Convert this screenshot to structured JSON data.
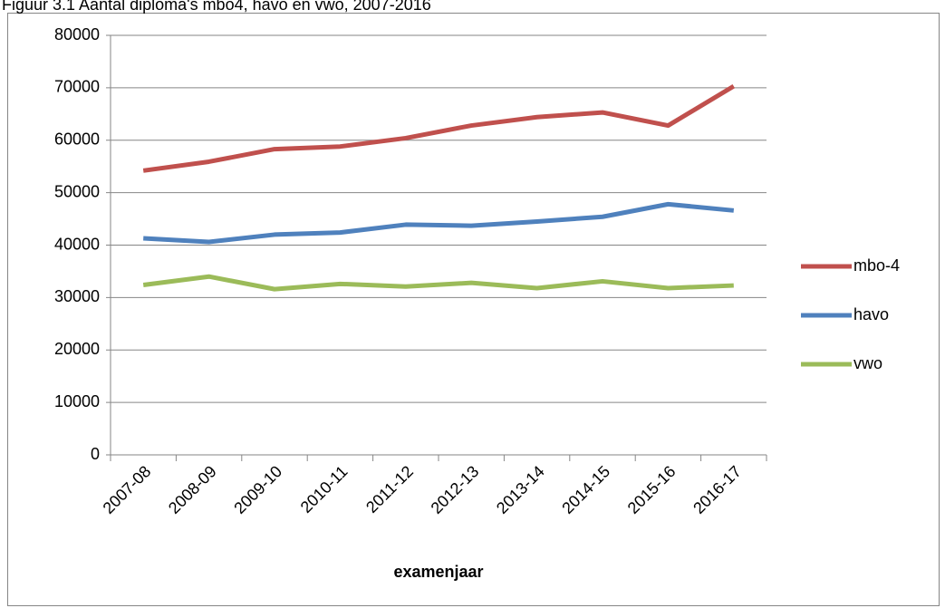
{
  "chart_data": {
    "type": "line",
    "title": "Figuur 3.1 Aantal diploma's mbo4, havo en vwo, 2007-2016",
    "x_label": "examenjaar",
    "categories": [
      "2007-08",
      "2008-09",
      "2009-10",
      "2010-11",
      "2011-12",
      "2012-13",
      "2013-14",
      "2014-15",
      "2015-16",
      "2016-17"
    ],
    "series": [
      {
        "name": "mbo-4",
        "color": "#c0504d",
        "values": [
          54200,
          55900,
          58300,
          58800,
          60400,
          62800,
          64400,
          65300,
          62800,
          70300
        ]
      },
      {
        "name": "havo",
        "color": "#4f81bd",
        "values": [
          41300,
          40600,
          42000,
          42400,
          43900,
          43700,
          44500,
          45400,
          47800,
          46600
        ]
      },
      {
        "name": "vwo",
        "color": "#9bbb59",
        "values": [
          32400,
          34000,
          31600,
          32600,
          32100,
          32800,
          31800,
          33100,
          31800,
          32300
        ]
      }
    ],
    "ylim": [
      0,
      80000
    ],
    "yticks": [
      0,
      10000,
      20000,
      30000,
      40000,
      50000,
      60000,
      70000,
      80000
    ],
    "grid": true,
    "legend": "right"
  }
}
